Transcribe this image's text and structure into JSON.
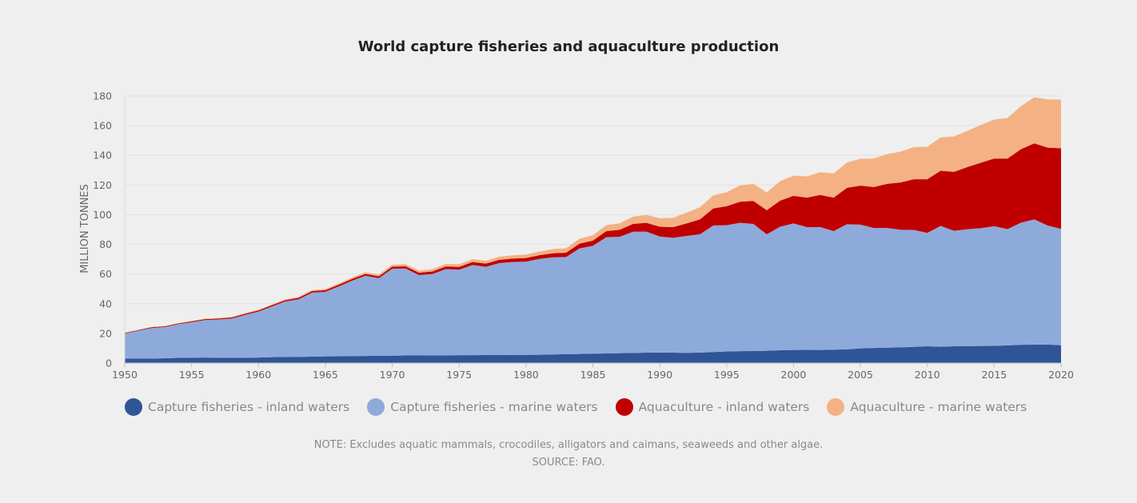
{
  "chart_data": {
    "type": "area",
    "stacked": true,
    "title": "World capture fisheries and aquaculture production",
    "xlabel": "",
    "ylabel": "MILLION TONNES",
    "xlim": [
      1950,
      2020
    ],
    "ylim": [
      0,
      180
    ],
    "x_ticks": [
      "1950",
      "1955",
      "1960",
      "1965",
      "1970",
      "1975",
      "1980",
      "1985",
      "1990",
      "1995",
      "2000",
      "2005",
      "2010",
      "2015",
      "2020"
    ],
    "y_ticks": [
      "0",
      "20",
      "40",
      "60",
      "80",
      "100",
      "120",
      "140",
      "160",
      "180"
    ],
    "grid": "horizontal",
    "legend_position": "bottom",
    "x": [
      1950,
      1951,
      1952,
      1953,
      1954,
      1955,
      1956,
      1957,
      1958,
      1959,
      1960,
      1961,
      1962,
      1963,
      1964,
      1965,
      1966,
      1967,
      1968,
      1969,
      1970,
      1971,
      1972,
      1973,
      1974,
      1975,
      1976,
      1977,
      1978,
      1979,
      1980,
      1981,
      1982,
      1983,
      1984,
      1985,
      1986,
      1987,
      1988,
      1989,
      1990,
      1991,
      1992,
      1993,
      1994,
      1995,
      1996,
      1997,
      1998,
      1999,
      2000,
      2001,
      2002,
      2003,
      2004,
      2005,
      2006,
      2007,
      2008,
      2009,
      2010,
      2011,
      2012,
      2013,
      2014,
      2015,
      2016,
      2017,
      2018,
      2019,
      2020
    ],
    "series": [
      {
        "name": "Capture fisheries - inland waters",
        "color": "#2f5597",
        "values": [
          3,
          3,
          3,
          3.2,
          3.5,
          3.6,
          3.7,
          3.6,
          3.5,
          3.6,
          3.7,
          4,
          4.2,
          4.2,
          4.3,
          4.5,
          4.6,
          4.7,
          4.8,
          4.9,
          5,
          5.1,
          5.1,
          5.2,
          5.2,
          5.3,
          5.3,
          5.4,
          5.4,
          5.5,
          5.5,
          5.6,
          5.8,
          6,
          6.1,
          6.3,
          6.5,
          6.7,
          6.8,
          7,
          7.1,
          7,
          6.9,
          7.1,
          7.4,
          7.8,
          8,
          8.1,
          8.3,
          8.6,
          8.8,
          8.9,
          8.8,
          9,
          9.2,
          9.9,
          10.2,
          10.4,
          10.6,
          10.9,
          11.3,
          11,
          11.3,
          11.4,
          11.5,
          11.6,
          11.9,
          12.3,
          12.4,
          12.5,
          12
        ]
      },
      {
        "name": "Capture fisheries - marine waters",
        "color": "#8eaadb",
        "values": [
          16.9,
          18.8,
          20.6,
          21.1,
          22.7,
          23.9,
          25.3,
          25.8,
          26.5,
          28.9,
          31,
          34.1,
          37.3,
          38.8,
          43.2,
          43.5,
          47.1,
          50.8,
          54.1,
          52.3,
          58.6,
          58.6,
          54.2,
          54.8,
          58.1,
          57.6,
          60.8,
          59.5,
          62,
          62.6,
          62.9,
          64.6,
          65.5,
          65.5,
          71.2,
          72.7,
          78.3,
          78.4,
          81.7,
          81.6,
          78.2,
          77.4,
          78.8,
          79.7,
          85.3,
          85.1,
          86.5,
          85.7,
          78.5,
          83.3,
          85.3,
          82.7,
          82.8,
          79.9,
          84.4,
          83.4,
          80.8,
          80.7,
          79.2,
          78.8,
          76.4,
          81.4,
          77.8,
          78.8,
          79.4,
          80.6,
          78.4,
          82.3,
          84.4,
          80.2,
          78.4
        ]
      },
      {
        "name": "Aquaculture - inland waters",
        "color": "#c00000",
        "values": [
          0.4,
          0.4,
          0.5,
          0.5,
          0.5,
          0.6,
          0.6,
          0.6,
          0.7,
          0.7,
          0.8,
          0.9,
          0.9,
          1,
          1,
          1.1,
          1.1,
          1.2,
          1.2,
          1.3,
          1.4,
          1.5,
          1.6,
          1.7,
          1.8,
          1.9,
          2,
          2.1,
          2.2,
          2.3,
          2.4,
          2.5,
          2.7,
          2.9,
          3.2,
          3.5,
          4.1,
          4.7,
          5.3,
          5.9,
          6.6,
          7.2,
          8.4,
          10,
          11.5,
          12.8,
          14.2,
          15.5,
          16.2,
          17.6,
          18.6,
          19.9,
          21.7,
          22.6,
          24.5,
          26.3,
          27.6,
          29.7,
          31.9,
          34.2,
          36.2,
          37.2,
          39.8,
          41.9,
          44.1,
          45.6,
          47.5,
          49.5,
          51.3,
          52.5,
          54.4
        ]
      },
      {
        "name": "Aquaculture - marine waters",
        "color": "#f4b183",
        "values": [
          0.2,
          0.2,
          0.2,
          0.2,
          0.3,
          0.3,
          0.3,
          0.4,
          0.4,
          0.5,
          0.5,
          0.5,
          0.6,
          0.6,
          0.7,
          0.8,
          0.9,
          1,
          1.1,
          1.2,
          1.3,
          1.4,
          1.5,
          1.6,
          1.7,
          1.8,
          1.9,
          2,
          2.1,
          2.2,
          2.3,
          2.5,
          2.8,
          3,
          3.3,
          3.6,
          4,
          4.4,
          4.9,
          5.3,
          5.7,
          6.3,
          7.2,
          8.2,
          8.8,
          9.4,
          11,
          11.5,
          12,
          13.1,
          13.6,
          14.3,
          15.3,
          16.3,
          17,
          18,
          19.2,
          20,
          20.8,
          21.6,
          21.8,
          22.5,
          23.8,
          24.4,
          25.4,
          26.3,
          27.4,
          29,
          31,
          32.5,
          32.8
        ]
      }
    ]
  },
  "note": "NOTE: Excludes aquatic mammals, crocodiles, alligators and caimans, seaweeds and other algae.",
  "source": "SOURCE: FAO."
}
